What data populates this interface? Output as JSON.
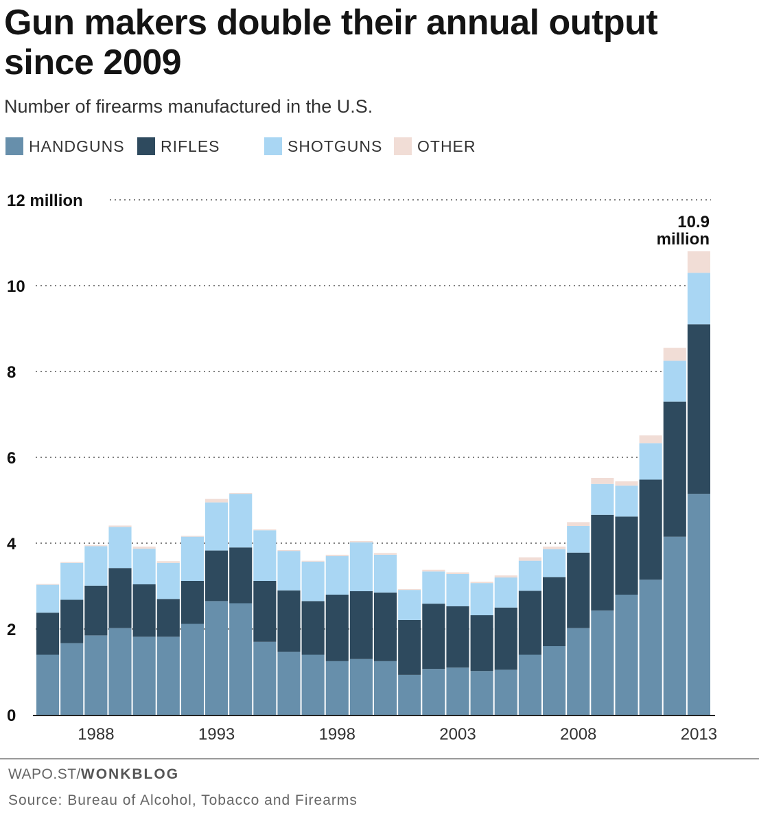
{
  "title": "Gun makers double their annual output since 2009",
  "subtitle": "Number of firearms manufactured in the U.S.",
  "credit": {
    "prefix": "WAPO.ST/",
    "brand": "WONKBLOG"
  },
  "source": "Source: Bureau of Alcohol, Tobacco and Firearms",
  "colors": {
    "handguns": "#678fab",
    "rifles": "#2e4a5e",
    "shotguns": "#a9d6f3",
    "other": "#f1ddd6",
    "grid": "#333333",
    "text": "#111111"
  },
  "chart_data": {
    "type": "bar",
    "stacked": true,
    "x": [
      1986,
      1987,
      1988,
      1989,
      1990,
      1991,
      1992,
      1993,
      1994,
      1995,
      1996,
      1997,
      1998,
      1999,
      2000,
      2001,
      2002,
      2003,
      2004,
      2005,
      2006,
      2007,
      2008,
      2009,
      2010,
      2011,
      2012,
      2013
    ],
    "x_tick_labels": [
      "1988",
      "1993",
      "1998",
      "2003",
      "2008",
      "2013"
    ],
    "x_ticks": [
      1988,
      1993,
      1998,
      2003,
      2008,
      2013
    ],
    "y_tick_labels": [
      "0",
      "2",
      "4",
      "6",
      "8",
      "10",
      "12 million"
    ],
    "y_ticks": [
      0,
      2,
      4,
      6,
      8,
      10,
      12
    ],
    "ylim": [
      0,
      12
    ],
    "y_unit": "million",
    "grid": "dotted horizontal",
    "legend": "top",
    "series": [
      {
        "name": "HANDGUNS",
        "color_key": "handguns",
        "values": [
          1.4,
          1.67,
          1.85,
          2.02,
          1.82,
          1.82,
          2.12,
          2.65,
          2.6,
          1.7,
          1.47,
          1.4,
          1.25,
          1.3,
          1.25,
          0.93,
          1.07,
          1.1,
          1.02,
          1.05,
          1.4,
          1.6,
          2.02,
          2.43,
          2.8,
          3.15,
          4.15,
          5.15
        ]
      },
      {
        "name": "RIFLES",
        "color_key": "rifles",
        "values": [
          0.98,
          1.01,
          1.16,
          1.4,
          1.22,
          0.88,
          1.0,
          1.18,
          1.3,
          1.42,
          1.43,
          1.25,
          1.55,
          1.58,
          1.6,
          1.28,
          1.52,
          1.43,
          1.3,
          1.45,
          1.49,
          1.61,
          1.76,
          2.23,
          1.82,
          2.33,
          3.15,
          3.95
        ]
      },
      {
        "name": "SHOTGUNS",
        "color_key": "shotguns",
        "values": [
          0.65,
          0.86,
          0.92,
          0.96,
          0.83,
          0.84,
          1.03,
          1.12,
          1.25,
          1.18,
          0.92,
          0.92,
          0.9,
          1.14,
          0.88,
          0.7,
          0.75,
          0.75,
          0.75,
          0.7,
          0.7,
          0.65,
          0.62,
          0.72,
          0.72,
          0.85,
          0.95,
          1.2
        ]
      },
      {
        "name": "OTHER",
        "color_key": "other",
        "values": [
          0.02,
          0.02,
          0.02,
          0.03,
          0.05,
          0.04,
          0.02,
          0.08,
          0.02,
          0.02,
          0.02,
          0.02,
          0.03,
          0.03,
          0.04,
          0.02,
          0.04,
          0.04,
          0.03,
          0.05,
          0.08,
          0.06,
          0.09,
          0.14,
          0.1,
          0.18,
          0.3,
          0.5
        ]
      }
    ],
    "annotation": {
      "line1": "10.9",
      "line2": "million",
      "year": 2013
    }
  }
}
